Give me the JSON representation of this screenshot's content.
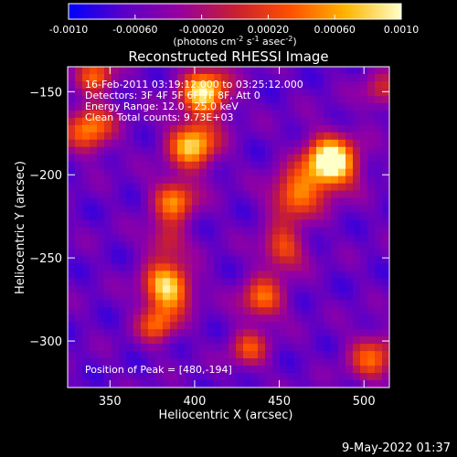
{
  "chart_data": {
    "type": "heatmap",
    "title": "Reconstructed RHESSI Image",
    "xlabel": "Heliocentric X (arcsec)",
    "ylabel": "Heliocentric Y (arcsec)",
    "xlim": [
      325,
      515
    ],
    "ylim": [
      -328,
      -135
    ],
    "xticks": [
      350,
      400,
      450,
      500
    ],
    "yticks": [
      -150,
      -200,
      -250,
      -300
    ],
    "colorbar": {
      "range": [
        -0.001,
        0.001
      ],
      "ticks": [
        "-0.0010",
        "-0.00060",
        "-0.00020",
        "0.00020",
        "0.00060",
        "0.0010"
      ],
      "unit_line1": "(photons cm",
      "unit_sup1": "-2",
      "unit_mid1": " s",
      "unit_sup2": "-1",
      "unit_mid2": " asec",
      "unit_sup3": "-2",
      "unit_end": ")",
      "colormap": [
        "#0000ff",
        "#5a00c8",
        "#9600a0",
        "#c81e32",
        "#ff5000",
        "#ffb400",
        "#ffffc8"
      ]
    },
    "annotations": {
      "time_range": "16-Feb-2011 03:19:12.000 to 03:25:12.000",
      "detectors": "Detectors: 3F 4F 5F 6F 7F 8F, Att 0",
      "energy_range": "Energy Range: 12.0 - 25.0 keV",
      "method": "Clean     Total counts: 9.73E+03",
      "peak_position": "Position of Peak = [480,-194]"
    },
    "peak": {
      "x": 480,
      "y": -194
    },
    "sources": [
      {
        "x": 480,
        "y": -193,
        "sigma": 11,
        "amp": 0.95
      },
      {
        "x": 459,
        "y": -213,
        "sigma": 10,
        "amp": 0.55
      },
      {
        "x": 452,
        "y": -245,
        "sigma": 9,
        "amp": 0.45
      },
      {
        "x": 440,
        "y": -275,
        "sigma": 9,
        "amp": 0.5
      },
      {
        "x": 432,
        "y": -305,
        "sigma": 8,
        "amp": 0.4
      },
      {
        "x": 406,
        "y": -150,
        "sigma": 10,
        "amp": 0.75
      },
      {
        "x": 399,
        "y": -182,
        "sigma": 10,
        "amp": 0.7
      },
      {
        "x": 388,
        "y": -215,
        "sigma": 9,
        "amp": 0.55
      },
      {
        "x": 383,
        "y": -240,
        "sigma": 8,
        "amp": 0.35
      },
      {
        "x": 384,
        "y": -268,
        "sigma": 10,
        "amp": 0.75
      },
      {
        "x": 378,
        "y": -290,
        "sigma": 8,
        "amp": 0.45
      },
      {
        "x": 338,
        "y": -172,
        "sigma": 10,
        "amp": 0.55
      },
      {
        "x": 342,
        "y": -140,
        "sigma": 8,
        "amp": 0.45
      },
      {
        "x": 505,
        "y": -310,
        "sigma": 10,
        "amp": 0.45
      },
      {
        "x": 510,
        "y": -150,
        "sigma": 8,
        "amp": 0.3
      }
    ]
  },
  "footer": {
    "date": "9-May-2022 01:37"
  }
}
